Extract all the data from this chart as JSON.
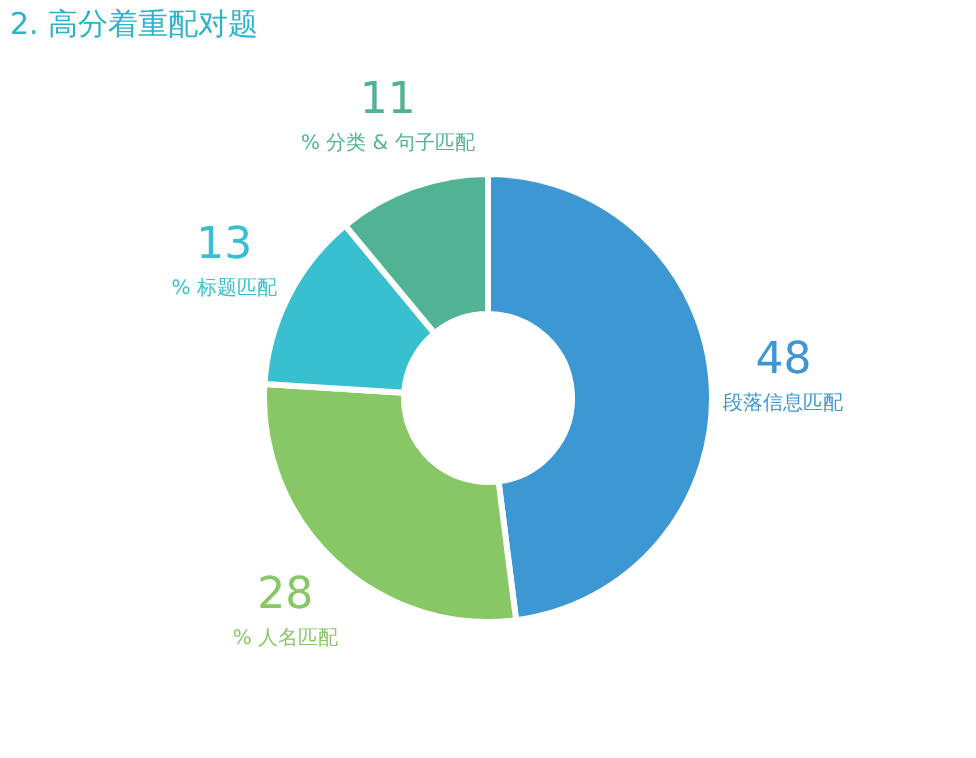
{
  "chart_data": {
    "type": "donut",
    "title": "2. 高分着重配对题",
    "categories": [
      "段落信息匹配",
      "% 人名匹配",
      "% 标题匹配",
      "% 分类 & 句子匹配"
    ],
    "values": [
      48,
      28,
      13,
      11
    ],
    "colors": [
      "#3d97d3",
      "#88c765",
      "#38c0d0",
      "#52b394"
    ],
    "data_labels": true,
    "legend": false
  }
}
